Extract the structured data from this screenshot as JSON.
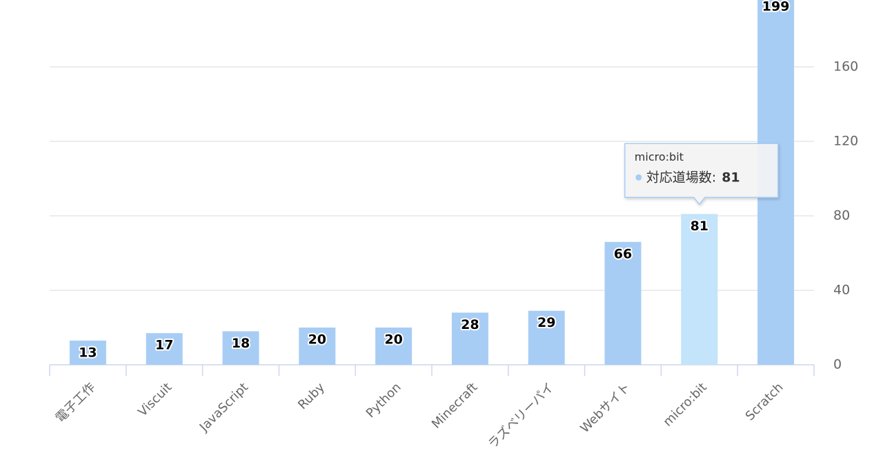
{
  "chart_data": {
    "type": "bar",
    "categories": [
      "電子工作",
      "Viscuit",
      "JavaScript",
      "Ruby",
      "Python",
      "Minecraft",
      "ラズベリーパイ",
      "Webサイト",
      "micro:bit",
      "Scratch"
    ],
    "series": [
      {
        "name": "対応道場数",
        "color": "#a8cdf5",
        "values": [
          13,
          17,
          18,
          20,
          20,
          28,
          29,
          66,
          81,
          199
        ]
      }
    ],
    "ylim": [
      0,
      200
    ],
    "yticks": [
      0,
      40,
      80,
      120,
      160
    ],
    "y_axis_side": "right",
    "grid": true,
    "tooltip": {
      "category": "micro:bit",
      "label": "対応道場数:",
      "highlight_color": "#c3e4fa"
    }
  }
}
